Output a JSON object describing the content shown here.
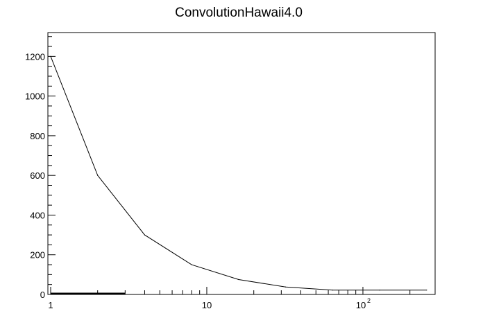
{
  "chart_data": {
    "type": "line",
    "title": "ConvolutionHawaii4.0",
    "xlabel": "",
    "ylabel": "",
    "x_scale": "log",
    "xlim": [
      0.96,
      290
    ],
    "ylim": [
      0,
      1320
    ],
    "x_ticks": [
      {
        "value": 1,
        "label": "1"
      },
      {
        "value": 10,
        "label": "10"
      },
      {
        "value": 100,
        "label": "10",
        "exponent": "2"
      }
    ],
    "y_ticks": [
      0,
      200,
      400,
      600,
      800,
      1000,
      1200
    ],
    "grid": false,
    "legend": "none",
    "series": [
      {
        "x": [
          1,
          2,
          4,
          8,
          16,
          32,
          64,
          128,
          256
        ],
        "y": [
          1200,
          600,
          300,
          150,
          75,
          37.5,
          22,
          22,
          22
        ]
      }
    ],
    "baseline_band": {
      "x_start": 1,
      "x_end": 3,
      "y": 0
    },
    "colors": {
      "line": "#000000",
      "background": "#ffffff"
    }
  }
}
